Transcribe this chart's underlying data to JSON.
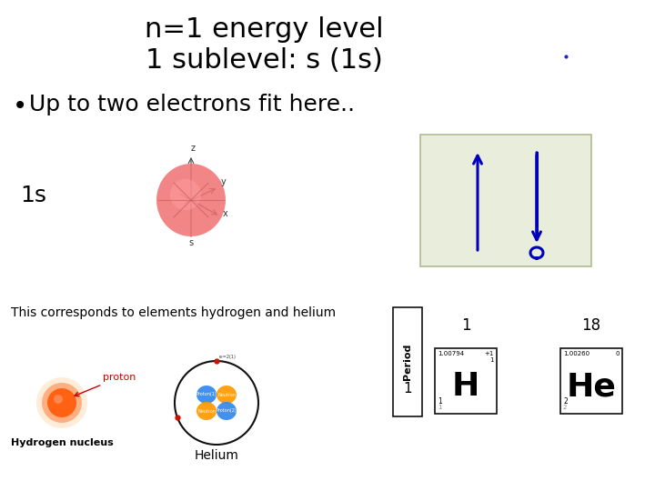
{
  "title_line1": "n=1 energy level",
  "title_line2": "1 sublevel: s (1s)",
  "bullet_text": "Up to two electrons fit here..",
  "label_1s": "1s",
  "label_corresponds": "This corresponds to elements hydrogen and helium",
  "background_color": "#ffffff",
  "title_fontsize": 22,
  "bullet_fontsize": 18,
  "label_1s_fontsize": 18,
  "corresponds_fontsize": 10,
  "arrow_color": "#0000bb",
  "box_bg_color": "#e8eddc",
  "box_edge_color": "#b0ba90",
  "period_label": "Period",
  "col1_label": "1",
  "col18_label": "18",
  "row1_label": "1",
  "H_symbol": "H",
  "He_symbol": "He",
  "H_mass": "1.00794",
  "He_mass": "1.00260",
  "H_charge": "+1",
  "He_charge": "0",
  "H_num1": "1",
  "H_num2": "1",
  "H_num3": "1",
  "He_num1": "2",
  "He_num2": "2",
  "hydrogen_label": "Hydrogen nucleus",
  "helium_label": "Helium",
  "proton_label": "proton",
  "dot_color": "#2222cc"
}
